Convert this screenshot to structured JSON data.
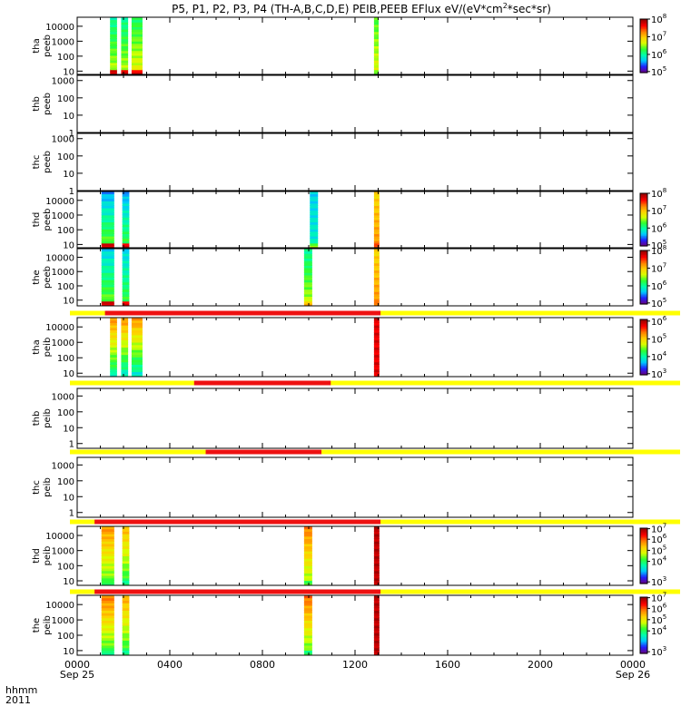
{
  "chart_data": {
    "type": "heatmap",
    "title": "P5, P1, P2, P3, P4 (TH-A,B,C,D,E) PEIB,PEEB EFlux eV/(eV*cm2*sec*sr)",
    "title_parts": {
      "main": "P5, P1, P2, P3, P4 (TH-A,B,C,D,E) PEIB,PEEB EFlux eV/(eV*cm",
      "sup": "2",
      "tail": "*sec*sr)"
    },
    "x_axis": {
      "corner_label_top": "hhmm",
      "corner_label_bottom": "2011",
      "range_hours": [
        0,
        24
      ],
      "ticks": [
        {
          "label": "0000",
          "sublabel": "Sep 25",
          "hour": 0
        },
        {
          "label": "0400",
          "sublabel": "",
          "hour": 4
        },
        {
          "label": "0800",
          "sublabel": "",
          "hour": 8
        },
        {
          "label": "1200",
          "sublabel": "",
          "hour": 12
        },
        {
          "label": "1600",
          "sublabel": "",
          "hour": 16
        },
        {
          "label": "2000",
          "sublabel": "",
          "hour": 20
        },
        {
          "label": "0000",
          "sublabel": "Sep 26",
          "hour": 24
        }
      ]
    },
    "colors": {
      "mode_red": "#ee1111",
      "mode_yellow": "#ffff00",
      "colorscale": [
        "#6a0080",
        "#2020ff",
        "#00c8ff",
        "#00ffaa",
        "#30ff30",
        "#d8ff00",
        "#ffd000",
        "#ff8000",
        "#ff0000",
        "#a00000"
      ]
    },
    "panels": [
      {
        "id": "tha-peeb",
        "probe": "tha",
        "instrument": "peeb",
        "yscale": "log",
        "ylim": [
          6,
          40000
        ],
        "ytick_labels": [
          {
            "label": "10000",
            "value": 10000
          },
          {
            "label": "1000",
            "value": 1000
          },
          {
            "label": "100",
            "value": 100
          },
          {
            "label": "10",
            "value": 10
          }
        ],
        "colorbar": {
          "ticks": [
            {
              "label": "10",
              "exp": "8",
              "level": 1.0
            },
            {
              "label": "10",
              "exp": "7",
              "level": 0.67
            },
            {
              "label": "10",
              "exp": "6",
              "level": 0.34
            },
            {
              "label": "10",
              "exp": "5",
              "level": 0.02
            }
          ]
        },
        "mode_bar": null,
        "data_blocks": [
          {
            "start": 1.42,
            "end": 1.72,
            "low_level": 0.55,
            "high_level": 0.35,
            "base_level": 0.92
          },
          {
            "start": 1.9,
            "end": 2.2,
            "low_level": 0.55,
            "high_level": 0.35,
            "base_level": 0.92
          },
          {
            "start": 2.35,
            "end": 2.82,
            "low_level": 0.6,
            "high_level": 0.4,
            "base_level": 0.92
          },
          {
            "start": 12.82,
            "end": 13.02,
            "low_level": 0.58,
            "high_level": 0.45,
            "base_level": 0.5
          }
        ]
      },
      {
        "id": "thb-peeb",
        "probe": "thb",
        "instrument": "peeb",
        "yscale": "log",
        "ylim": [
          1,
          2000
        ],
        "ytick_labels": [
          {
            "label": "1000",
            "value": 1000
          },
          {
            "label": "100",
            "value": 100
          },
          {
            "label": "10",
            "value": 10
          },
          {
            "label": "1",
            "value": 1
          }
        ],
        "colorbar": null,
        "mode_bar": null,
        "data_blocks": []
      },
      {
        "id": "thc-peeb",
        "probe": "thc",
        "instrument": "peeb",
        "yscale": "log",
        "ylim": [
          1,
          2000
        ],
        "ytick_labels": [
          {
            "label": "1000",
            "value": 1000
          },
          {
            "label": "100",
            "value": 100
          },
          {
            "label": "10",
            "value": 10
          },
          {
            "label": "1",
            "value": 1
          }
        ],
        "colorbar": null,
        "mode_bar": null,
        "data_blocks": []
      },
      {
        "id": "thd-peeb",
        "probe": "thd",
        "instrument": "peeb",
        "yscale": "log",
        "ylim": [
          6,
          40000
        ],
        "ytick_labels": [
          {
            "label": "10000",
            "value": 10000
          },
          {
            "label": "1000",
            "value": 1000
          },
          {
            "label": "100",
            "value": 100
          },
          {
            "label": "10",
            "value": 10
          }
        ],
        "colorbar": {
          "ticks": [
            {
              "label": "10",
              "exp": "8",
              "level": 1.0
            },
            {
              "label": "10",
              "exp": "7",
              "level": 0.67
            },
            {
              "label": "10",
              "exp": "6",
              "level": 0.34
            },
            {
              "label": "10",
              "exp": "5",
              "level": 0.02
            }
          ]
        },
        "mode_bar": null,
        "data_blocks": [
          {
            "start": 1.05,
            "end": 1.6,
            "low_level": 0.5,
            "high_level": 0.2,
            "base_level": 0.92
          },
          {
            "start": 1.95,
            "end": 2.25,
            "low_level": 0.45,
            "high_level": 0.2,
            "base_level": 0.9
          },
          {
            "start": 10.05,
            "end": 10.4,
            "low_level": 0.3,
            "high_level": 0.25,
            "base_level": 0.5
          },
          {
            "start": 12.82,
            "end": 13.05,
            "low_level": 0.75,
            "high_level": 0.65,
            "base_level": 0.85
          }
        ]
      },
      {
        "id": "the-peeb",
        "probe": "the",
        "instrument": "peeb",
        "yscale": "log",
        "ylim": [
          4,
          40000
        ],
        "ytick_labels": [
          {
            "label": "10000",
            "value": 10000
          },
          {
            "label": "1000",
            "value": 1000
          },
          {
            "label": "100",
            "value": 100
          },
          {
            "label": "10",
            "value": 10
          }
        ],
        "colorbar": {
          "ticks": [
            {
              "label": "10",
              "exp": "8",
              "level": 1.0
            },
            {
              "label": "10",
              "exp": "7",
              "level": 0.67
            },
            {
              "label": "10",
              "exp": "6",
              "level": 0.34
            },
            {
              "label": "10",
              "exp": "5",
              "level": 0.02
            }
          ]
        },
        "mode_bar": null,
        "data_blocks": [
          {
            "start": 1.05,
            "end": 1.6,
            "low_level": 0.5,
            "high_level": 0.25,
            "base_level": 0.92
          },
          {
            "start": 1.95,
            "end": 2.25,
            "low_level": 0.45,
            "high_level": 0.25,
            "base_level": 0.9
          },
          {
            "start": 9.8,
            "end": 10.15,
            "low_level": 0.55,
            "high_level": 0.35,
            "base_level": 0.7
          },
          {
            "start": 12.82,
            "end": 13.05,
            "low_level": 0.75,
            "high_level": 0.65,
            "base_level": 0.8
          }
        ]
      },
      {
        "id": "tha-peib",
        "probe": "tha",
        "instrument": "peib",
        "yscale": "log",
        "ylim": [
          6,
          40000
        ],
        "ytick_labels": [
          {
            "label": "10000",
            "value": 10000
          },
          {
            "label": "1000",
            "value": 1000
          },
          {
            "label": "100",
            "value": 100
          },
          {
            "label": "10",
            "value": 10
          }
        ],
        "colorbar": {
          "ticks": [
            {
              "label": "10",
              "exp": "6",
              "level": 0.97
            },
            {
              "label": "10",
              "exp": "5",
              "level": 0.65
            },
            {
              "label": "10",
              "exp": "4",
              "level": 0.33
            },
            {
              "label": "10",
              "exp": "3",
              "level": 0.02
            }
          ]
        },
        "mode_bar": {
          "red_start": 1.2,
          "red_end": 13.1
        },
        "data_blocks": [
          {
            "start": 1.42,
            "end": 1.72,
            "low_level": 0.35,
            "high_level": 0.75,
            "base_level": 0.3
          },
          {
            "start": 1.9,
            "end": 2.2,
            "low_level": 0.3,
            "high_level": 0.75,
            "base_level": 0.3
          },
          {
            "start": 2.35,
            "end": 2.82,
            "low_level": 0.3,
            "high_level": 0.75,
            "base_level": 0.3
          },
          {
            "start": 12.82,
            "end": 13.05,
            "low_level": 0.92,
            "high_level": 0.92,
            "base_level": 0.92
          }
        ]
      },
      {
        "id": "thb-peib",
        "probe": "thb",
        "instrument": "peib",
        "yscale": "log",
        "ylim": [
          0.5,
          3000
        ],
        "ytick_labels": [
          {
            "label": "1000",
            "value": 1000
          },
          {
            "label": "100",
            "value": 100
          },
          {
            "label": "10",
            "value": 10
          },
          {
            "label": "1",
            "value": 1
          }
        ],
        "colorbar": null,
        "mode_bar": {
          "red_start": 5.05,
          "red_end": 10.95
        },
        "data_blocks": []
      },
      {
        "id": "thc-peib",
        "probe": "thc",
        "instrument": "peib",
        "yscale": "log",
        "ylim": [
          0.5,
          3000
        ],
        "ytick_labels": [
          {
            "label": "1000",
            "value": 1000
          },
          {
            "label": "100",
            "value": 100
          },
          {
            "label": "10",
            "value": 10
          },
          {
            "label": "1",
            "value": 1
          }
        ],
        "colorbar": null,
        "mode_bar": {
          "red_start": 5.55,
          "red_end": 10.55
        },
        "data_blocks": []
      },
      {
        "id": "thd-peib",
        "probe": "thd",
        "instrument": "peib",
        "yscale": "log",
        "ylim": [
          5,
          40000
        ],
        "ytick_labels": [
          {
            "label": "10000",
            "value": 10000
          },
          {
            "label": "1000",
            "value": 1000
          },
          {
            "label": "100",
            "value": 100
          },
          {
            "label": "10",
            "value": 10
          }
        ],
        "colorbar": {
          "ticks": [
            {
              "label": "10",
              "exp": "7",
              "level": 0.99
            },
            {
              "label": "10",
              "exp": "6",
              "level": 0.8
            },
            {
              "label": "10",
              "exp": "5",
              "level": 0.6
            },
            {
              "label": "10",
              "exp": "4",
              "level": 0.4
            },
            {
              "label": "10",
              "exp": "3",
              "level": 0.03
            }
          ]
        },
        "mode_bar": {
          "red_start": 0.75,
          "red_end": 13.1
        },
        "data_blocks": [
          {
            "start": 1.05,
            "end": 1.6,
            "low_level": 0.45,
            "high_level": 0.75,
            "base_level": 0.4
          },
          {
            "start": 1.95,
            "end": 2.25,
            "low_level": 0.4,
            "high_level": 0.7,
            "base_level": 0.35
          },
          {
            "start": 9.8,
            "end": 10.15,
            "low_level": 0.5,
            "high_level": 0.78,
            "base_level": 0.45
          },
          {
            "start": 12.82,
            "end": 13.05,
            "low_level": 0.97,
            "high_level": 0.97,
            "base_level": 0.97
          }
        ]
      },
      {
        "id": "the-peib",
        "probe": "the",
        "instrument": "peib",
        "yscale": "log",
        "ylim": [
          5,
          40000
        ],
        "ytick_labels": [
          {
            "label": "10000",
            "value": 10000
          },
          {
            "label": "1000",
            "value": 1000
          },
          {
            "label": "100",
            "value": 100
          },
          {
            "label": "10",
            "value": 10
          }
        ],
        "colorbar": {
          "ticks": [
            {
              "label": "10",
              "exp": "7",
              "level": 0.99
            },
            {
              "label": "10",
              "exp": "6",
              "level": 0.8
            },
            {
              "label": "10",
              "exp": "5",
              "level": 0.6
            },
            {
              "label": "10",
              "exp": "4",
              "level": 0.4
            },
            {
              "label": "10",
              "exp": "3",
              "level": 0.03
            }
          ]
        },
        "mode_bar": {
          "red_start": 0.75,
          "red_end": 13.1
        },
        "data_blocks": [
          {
            "start": 1.05,
            "end": 1.6,
            "low_level": 0.42,
            "high_level": 0.78,
            "base_level": 0.35
          },
          {
            "start": 1.95,
            "end": 2.25,
            "low_level": 0.4,
            "high_level": 0.72,
            "base_level": 0.35
          },
          {
            "start": 9.8,
            "end": 10.15,
            "low_level": 0.45,
            "high_level": 0.8,
            "base_level": 0.4
          },
          {
            "start": 12.82,
            "end": 13.05,
            "low_level": 0.97,
            "high_level": 0.97,
            "base_level": 0.97
          }
        ]
      }
    ]
  }
}
